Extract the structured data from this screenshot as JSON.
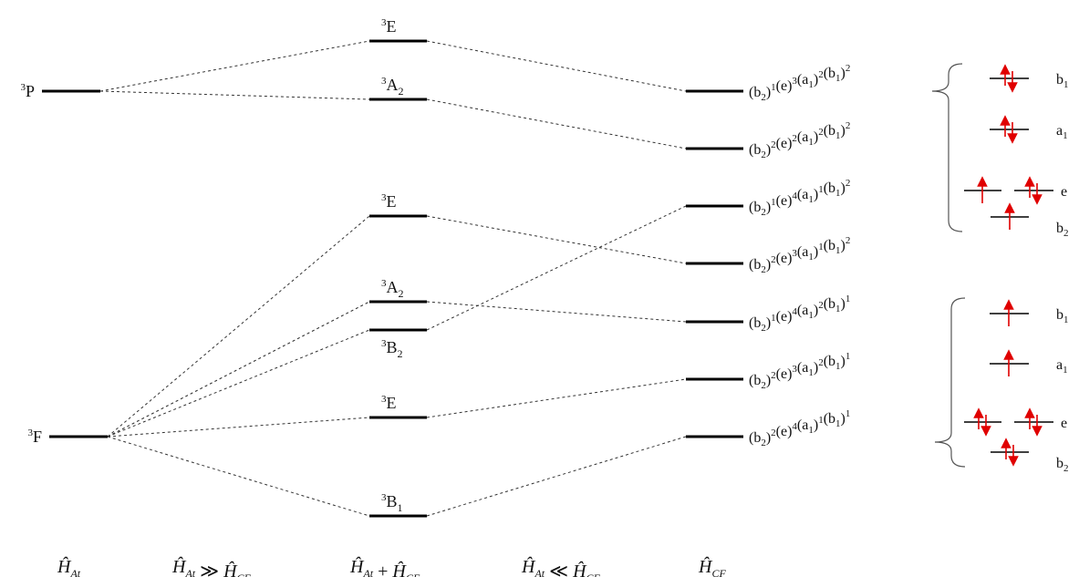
{
  "free_ion_terms": [
    {
      "id": "3P",
      "sup": "3",
      "base": "P"
    },
    {
      "id": "3F",
      "sup": "3",
      "base": "F"
    }
  ],
  "weak_field_terms": [
    {
      "id": "w1",
      "sup": "3",
      "base": "E",
      "sub": "",
      "from": "3P"
    },
    {
      "id": "w2",
      "sup": "3",
      "base": "A",
      "sub": "2",
      "from": "3P"
    },
    {
      "id": "w3",
      "sup": "3",
      "base": "E",
      "sub": "",
      "from": "3F"
    },
    {
      "id": "w4",
      "sup": "3",
      "base": "A",
      "sub": "2",
      "from": "3F"
    },
    {
      "id": "w5",
      "sup": "3",
      "base": "B",
      "sub": "2",
      "from": "3F"
    },
    {
      "id": "w6",
      "sup": "3",
      "base": "E",
      "sub": "",
      "from": "3F"
    },
    {
      "id": "w7",
      "sup": "3",
      "base": "B",
      "sub": "1",
      "from": "3F"
    }
  ],
  "strong_field_configs": [
    {
      "id": "c1",
      "b2": "1",
      "e": "3",
      "a1": "2",
      "b1": "2",
      "from": "w1"
    },
    {
      "id": "c2",
      "b2": "2",
      "e": "2",
      "a1": "2",
      "b1": "2",
      "from": "w2"
    },
    {
      "id": "c3",
      "b2": "1",
      "e": "4",
      "a1": "1",
      "b1": "2",
      "from": "w5"
    },
    {
      "id": "c4",
      "b2": "2",
      "e": "3",
      "a1": "1",
      "b1": "2",
      "from": "w3"
    },
    {
      "id": "c5",
      "b2": "1",
      "e": "4",
      "a1": "2",
      "b1": "1",
      "from": "w4"
    },
    {
      "id": "c6",
      "b2": "2",
      "e": "3",
      "a1": "2",
      "b1": "1",
      "from": "w6"
    },
    {
      "id": "c7",
      "b2": "2",
      "e": "4",
      "a1": "1",
      "b1": "1",
      "from": "w7"
    }
  ],
  "config_labels": {
    "b": "b",
    "e": "e",
    "a": "a",
    "sub1": "1",
    "sub2": "2"
  },
  "orbital_diagrams": [
    {
      "name": "upper",
      "b1_label": "b",
      "b1_sub": "1",
      "a1_label": "a",
      "a1_sub": "1",
      "e_label": "e",
      "b2_label": "b",
      "b2_sub": "2",
      "b1_electrons": "paired",
      "a1_electrons": "paired",
      "e_left_electrons": "up",
      "e_right_electrons": "paired",
      "b2_electrons": "up"
    },
    {
      "name": "lower",
      "b1_label": "b",
      "b1_sub": "1",
      "a1_label": "a",
      "a1_sub": "1",
      "e_label": "e",
      "b2_label": "b",
      "b2_sub": "2",
      "b1_electrons": "up",
      "a1_electrons": "up",
      "e_left_electrons": "paired",
      "e_right_electrons": "paired",
      "b2_electrons": "paired"
    }
  ],
  "bottom_labels": [
    {
      "id": "at",
      "text": "Ĥ",
      "sub": "At"
    },
    {
      "id": "at_gg_cf",
      "lhs": "Ĥ",
      "lhs_sub": "At",
      "op": "≫",
      "rhs": "Ĥ",
      "rhs_sub": "CF"
    },
    {
      "id": "at_plus_cf",
      "lhs": "Ĥ",
      "lhs_sub": "At",
      "op": "+",
      "rhs": "Ĥ",
      "rhs_sub": "CF"
    },
    {
      "id": "at_ll_cf",
      "lhs": "Ĥ",
      "lhs_sub": "At",
      "op": "≪",
      "rhs": "Ĥ",
      "rhs_sub": "CF"
    },
    {
      "id": "cf",
      "text": "Ĥ",
      "sub": "CF"
    }
  ],
  "colors": {
    "electron_arrow": "#e00000",
    "level": "#000000",
    "connector": "#333333"
  }
}
